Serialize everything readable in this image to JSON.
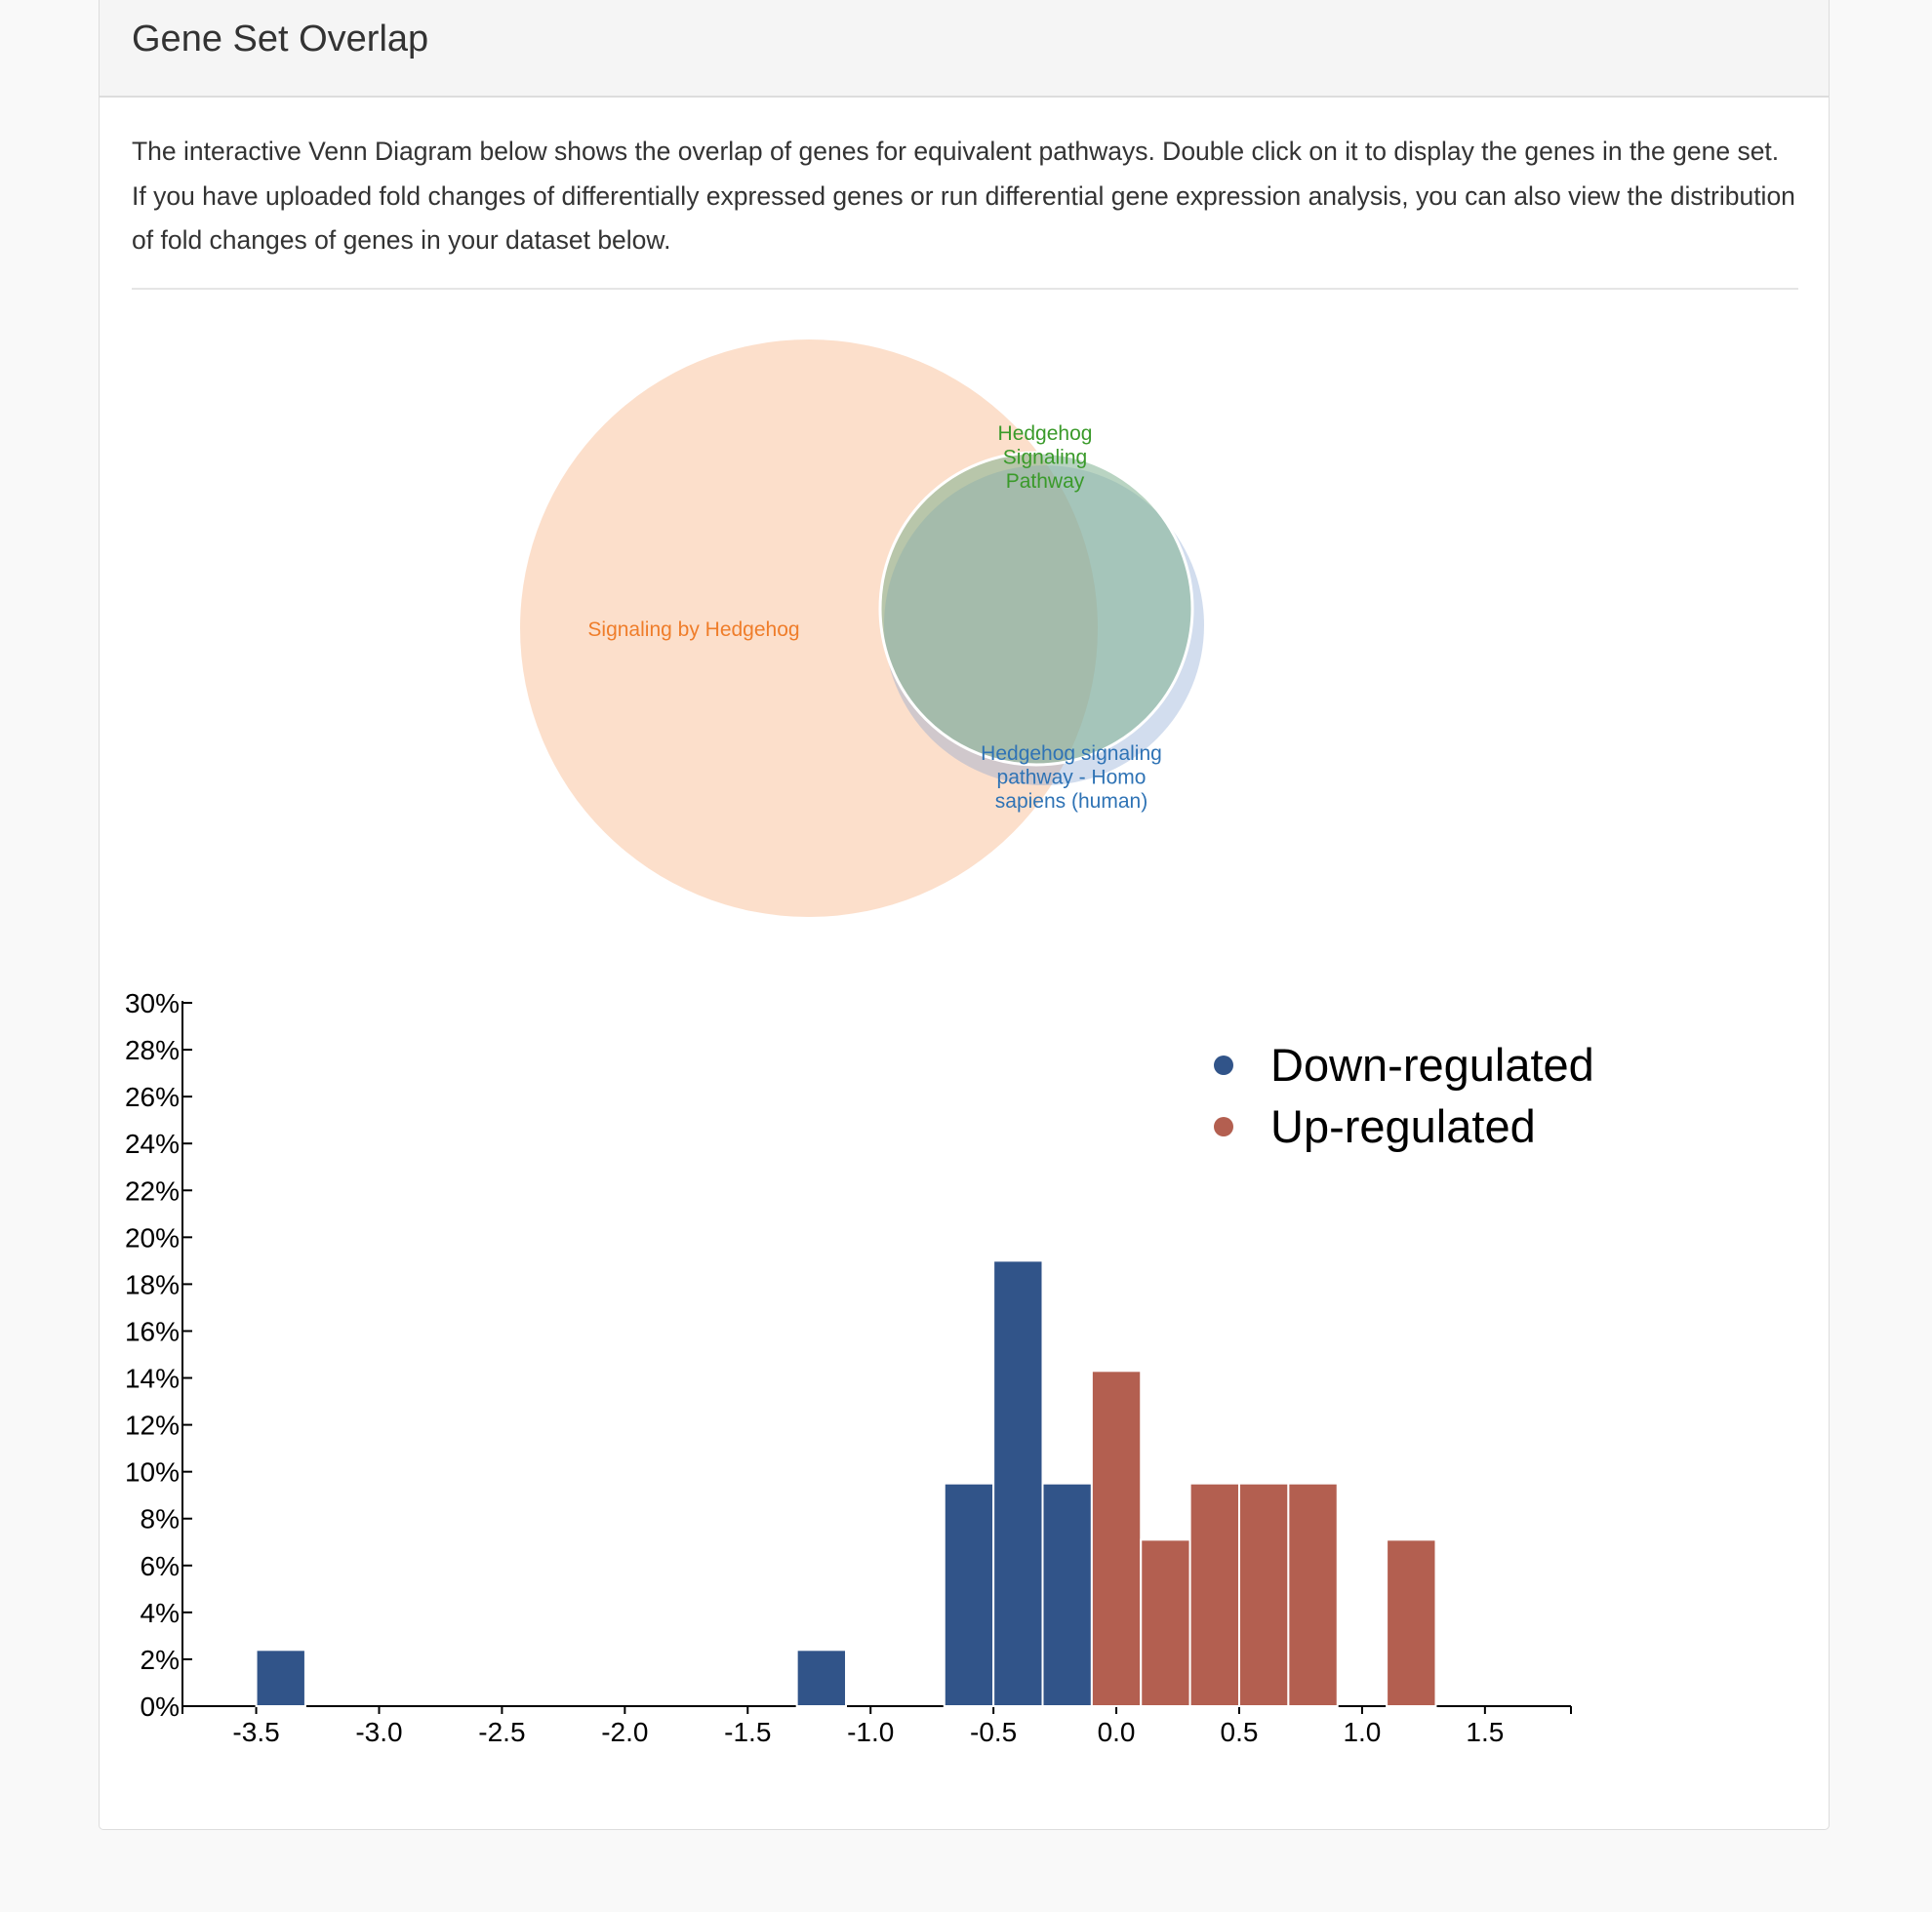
{
  "panel": {
    "title": "Gene Set Overlap",
    "description": "The interactive Venn Diagram below shows the overlap of genes for equivalent pathways. Double click on it to display the genes in the gene set. If you have uploaded fold changes of differentially expressed genes or run differential gene expression analysis, you can also view the distribution of fold changes of genes in your dataset below."
  },
  "venn": {
    "sets": [
      {
        "label": "Signaling by Hedgehog",
        "color": "#f7a46a",
        "label_color": "#ef7d2a"
      },
      {
        "label": "Hedgehog Signaling Pathway",
        "color": "#7fb08f",
        "label_color": "#3a9a2a"
      },
      {
        "label": "Hedgehog signaling pathway - Homo sapiens (human)",
        "color": "#7f9fcf",
        "label_color": "#2f73b5"
      }
    ]
  },
  "colors": {
    "down": "#315489",
    "up": "#b35f50"
  },
  "chart_data": {
    "type": "bar",
    "xlim": [
      -3.8,
      1.85
    ],
    "ylim": [
      0,
      30
    ],
    "x_ticks": [
      -3.5,
      -3.0,
      -2.5,
      -2.0,
      -1.5,
      -1.0,
      -0.5,
      0.0,
      0.5,
      1.0,
      1.5
    ],
    "x_tick_labels": [
      "-3.5",
      "-3.0",
      "-2.5",
      "-2.0",
      "-1.5",
      "-1.0",
      "-0.5",
      "0.0",
      "0.5",
      "1.0",
      "1.5"
    ],
    "y_ticks": [
      0,
      2,
      4,
      6,
      8,
      10,
      12,
      14,
      16,
      18,
      20,
      22,
      24,
      26,
      28,
      30
    ],
    "y_tick_labels": [
      "0%",
      "2%",
      "4%",
      "6%",
      "8%",
      "10%",
      "12%",
      "14%",
      "16%",
      "18%",
      "20%",
      "22%",
      "24%",
      "26%",
      "28%",
      "30%"
    ],
    "bin_width": 0.2,
    "series": [
      {
        "name": "Down-regulated",
        "bins": [
          {
            "x0": -3.5,
            "x1": -3.3,
            "value": 2.4
          },
          {
            "x0": -1.3,
            "x1": -1.1,
            "value": 2.4
          },
          {
            "x0": -0.7,
            "x1": -0.5,
            "value": 9.5
          },
          {
            "x0": -0.5,
            "x1": -0.3,
            "value": 19.0
          },
          {
            "x0": -0.3,
            "x1": -0.1,
            "value": 9.5
          }
        ]
      },
      {
        "name": "Up-regulated",
        "bins": [
          {
            "x0": -0.1,
            "x1": 0.1,
            "value": 14.3
          },
          {
            "x0": 0.1,
            "x1": 0.3,
            "value": 7.1
          },
          {
            "x0": 0.3,
            "x1": 0.5,
            "value": 9.5
          },
          {
            "x0": 0.5,
            "x1": 0.7,
            "value": 9.5
          },
          {
            "x0": 0.7,
            "x1": 0.9,
            "value": 9.5
          },
          {
            "x0": 1.1,
            "x1": 1.3,
            "value": 7.1
          }
        ]
      }
    ],
    "legend": [
      "Down-regulated",
      "Up-regulated"
    ],
    "legend_position": "top-right",
    "grid": false
  }
}
